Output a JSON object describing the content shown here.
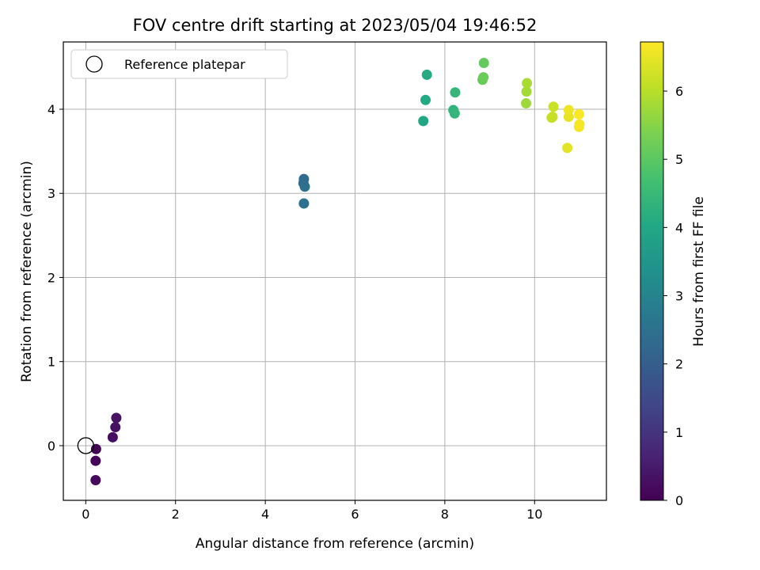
{
  "chart_data": {
    "type": "scatter",
    "title": "FOV centre drift starting at 2023/05/04 19:46:52",
    "xlabel": "Angular distance from reference (arcmin)",
    "ylabel": "Rotation from reference (arcmin)",
    "xlim": [
      -0.5,
      11.6
    ],
    "ylim": [
      -0.65,
      4.8
    ],
    "xticks": [
      0,
      2,
      4,
      6,
      8,
      10
    ],
    "yticks": [
      0,
      1,
      2,
      3,
      4
    ],
    "grid": true,
    "legend": {
      "placement": "top-left",
      "entries": [
        "Reference platepar"
      ]
    },
    "reference_point": {
      "name": "Reference platepar",
      "x": 0,
      "y": 0,
      "marker": "open-circle"
    },
    "colorbar": {
      "label": "Hours from first FF file",
      "range": [
        0,
        6.72
      ],
      "ticks": [
        0,
        1,
        2,
        3,
        4,
        5,
        6
      ],
      "colormap": "viridis"
    },
    "points": [
      {
        "x": 0.23,
        "y": -0.04,
        "hours": 0.05
      },
      {
        "x": 0.22,
        "y": -0.18,
        "hours": 0.1
      },
      {
        "x": 0.22,
        "y": -0.41,
        "hours": 0.15
      },
      {
        "x": 0.6,
        "y": 0.1,
        "hours": 0.25
      },
      {
        "x": 0.66,
        "y": 0.22,
        "hours": 0.3
      },
      {
        "x": 0.68,
        "y": 0.33,
        "hours": 0.35
      },
      {
        "x": 4.86,
        "y": 3.17,
        "hours": 2.35
      },
      {
        "x": 4.85,
        "y": 3.12,
        "hours": 2.4
      },
      {
        "x": 4.88,
        "y": 3.08,
        "hours": 2.45
      },
      {
        "x": 4.86,
        "y": 2.88,
        "hours": 2.5
      },
      {
        "x": 7.52,
        "y": 3.86,
        "hours": 4.0
      },
      {
        "x": 7.57,
        "y": 4.11,
        "hours": 4.05
      },
      {
        "x": 7.6,
        "y": 4.41,
        "hours": 4.1
      },
      {
        "x": 8.19,
        "y": 3.99,
        "hours": 4.35
      },
      {
        "x": 8.22,
        "y": 3.95,
        "hours": 4.4
      },
      {
        "x": 8.23,
        "y": 4.2,
        "hours": 4.45
      },
      {
        "x": 8.84,
        "y": 4.35,
        "hours": 5.15
      },
      {
        "x": 8.86,
        "y": 4.38,
        "hours": 5.2
      },
      {
        "x": 8.87,
        "y": 4.55,
        "hours": 5.1
      },
      {
        "x": 9.81,
        "y": 4.07,
        "hours": 5.75
      },
      {
        "x": 9.82,
        "y": 4.21,
        "hours": 5.8
      },
      {
        "x": 9.83,
        "y": 4.31,
        "hours": 5.85
      },
      {
        "x": 10.38,
        "y": 3.9,
        "hours": 6.1
      },
      {
        "x": 10.4,
        "y": 3.91,
        "hours": 6.15
      },
      {
        "x": 10.42,
        "y": 4.03,
        "hours": 6.2
      },
      {
        "x": 10.73,
        "y": 3.54,
        "hours": 6.45
      },
      {
        "x": 10.76,
        "y": 3.91,
        "hours": 6.5
      },
      {
        "x": 10.76,
        "y": 3.99,
        "hours": 6.55
      },
      {
        "x": 10.99,
        "y": 3.79,
        "hours": 6.6
      },
      {
        "x": 11.0,
        "y": 3.82,
        "hours": 6.65
      },
      {
        "x": 10.99,
        "y": 3.94,
        "hours": 6.7
      }
    ]
  }
}
